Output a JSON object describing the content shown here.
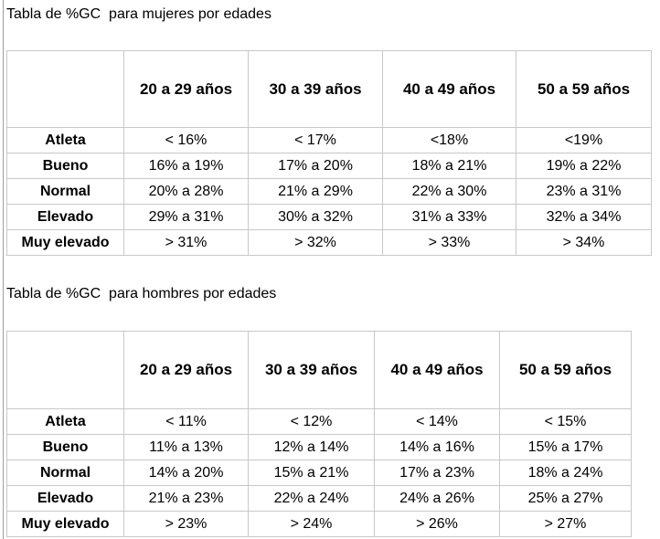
{
  "women": {
    "caption": "Tabla de %GC  para mujeres por edades",
    "columns": [
      "",
      "20 a 29 años",
      "30 a 39 años",
      "40 a 49 años",
      "50 a 59 años"
    ],
    "rows": [
      [
        "Atleta",
        "< 16%",
        "< 17%",
        "<18%",
        "<19%"
      ],
      [
        "Bueno",
        "16% a 19%",
        "17% a 20%",
        "18% a 21%",
        "19% a 22%"
      ],
      [
        "Normal",
        "20% a 28%",
        "21% a 29%",
        "22% a 30%",
        "23% a 31%"
      ],
      [
        "Elevado",
        "29% a 31%",
        "30% a 32%",
        "31% a 33%",
        "32% a 34%"
      ],
      [
        "Muy elevado",
        "> 31%",
        "> 32%",
        "> 33%",
        "> 34%"
      ]
    ]
  },
  "men": {
    "caption": "Tabla de %GC  para hombres por edades",
    "columns": [
      "",
      "20 a 29 años",
      "30 a 39 años",
      "40 a 49 años",
      "50 a 59 años"
    ],
    "rows": [
      [
        "Atleta",
        "< 11%",
        "< 12%",
        "< 14%",
        "< 15%"
      ],
      [
        "Bueno",
        "11% a 13%",
        "12% a 14%",
        "14% a 16%",
        "15% a 17%"
      ],
      [
        "Normal",
        "14% a 20%",
        "15% a 21%",
        "17% a 23%",
        "18% a 24%"
      ],
      [
        "Elevado",
        "21% a 23%",
        "22% a 24%",
        "24% a 26%",
        "25% a 27%"
      ],
      [
        "Muy elevado",
        "> 23%",
        "> 24%",
        "> 26%",
        "> 27%"
      ]
    ]
  }
}
